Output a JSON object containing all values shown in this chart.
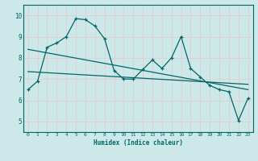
{
  "xlabel": "Humidex (Indice chaleur)",
  "xlim": [
    -0.5,
    23.5
  ],
  "ylim": [
    4.5,
    10.5
  ],
  "yticks": [
    5,
    6,
    7,
    8,
    9,
    10
  ],
  "xticks": [
    0,
    1,
    2,
    3,
    4,
    5,
    6,
    7,
    8,
    9,
    10,
    11,
    12,
    13,
    14,
    15,
    16,
    17,
    18,
    19,
    20,
    21,
    22,
    23
  ],
  "bg_color": "#cce8e8",
  "grid_color": "#e8c8c8",
  "line_color": "#006868",
  "line1_x": [
    0,
    1,
    2,
    3,
    4,
    5,
    6,
    7,
    8,
    9,
    10,
    11,
    12,
    13,
    14,
    15,
    16,
    17,
    18,
    19,
    20,
    21,
    22,
    23
  ],
  "line1_y": [
    6.5,
    6.9,
    8.5,
    8.7,
    9.0,
    9.85,
    9.8,
    9.5,
    8.9,
    7.4,
    7.0,
    7.0,
    7.45,
    7.9,
    7.5,
    8.0,
    9.0,
    7.5,
    7.1,
    6.7,
    6.5,
    6.4,
    5.05,
    6.1
  ],
  "line2_x": [
    0,
    23
  ],
  "line2_y": [
    8.4,
    6.5
  ],
  "line3_x": [
    0,
    23
  ],
  "line3_y": [
    7.35,
    6.75
  ]
}
